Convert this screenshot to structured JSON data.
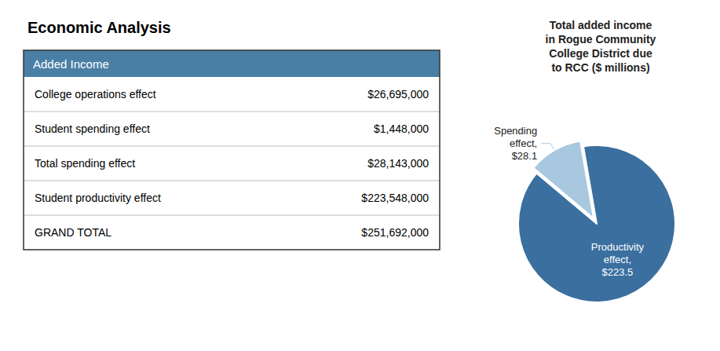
{
  "chart_data": [
    {
      "type": "table",
      "title": "Economic Analysis",
      "header": "Added Income",
      "color": "#4a7fa5",
      "rows": [
        {
          "label": "College operations effect",
          "value": "$26,695,000"
        },
        {
          "label": "Student spending effect",
          "value": "$1,448,000"
        },
        {
          "label": "Total spending effect",
          "value": "$28,143,000"
        },
        {
          "label": "Student productivity effect",
          "value": "$223,548,000"
        },
        {
          "label": "GRAND TOTAL",
          "value": "$251,692,000"
        }
      ]
    },
    {
      "type": "pie",
      "title": "Total added income\nin Rogue Community\nCollege District due\nto RCC ($ millions)",
      "values": [
        28.1,
        223.5
      ],
      "value_labels": [
        "Spending\neffect,\n$28.1",
        "Productivity\neffect,\n$223.5"
      ],
      "data_labels": true,
      "colors": [
        "#a8c8e0",
        "#3a6f9f"
      ]
    }
  ]
}
